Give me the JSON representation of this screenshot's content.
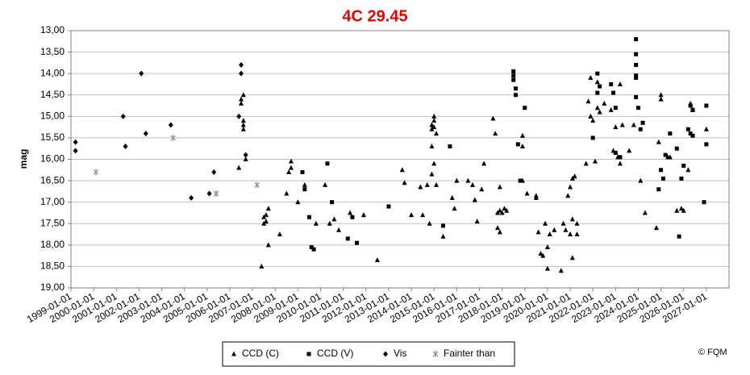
{
  "chart_data": {
    "type": "scatter",
    "title": "4C 29.45",
    "y_label": "mag",
    "credit": "© FQM",
    "xlim": [
      1999,
      2028
    ],
    "ylim": [
      13,
      19
    ],
    "y_reversed": true,
    "grid": true,
    "legend": "bottom",
    "xticks": [
      {
        "value": 1999,
        "label": "1999-01-01"
      },
      {
        "value": 2000,
        "label": "2000-01-01"
      },
      {
        "value": 2001,
        "label": "2001-01-01"
      },
      {
        "value": 2002,
        "label": "2002-01-01"
      },
      {
        "value": 2003,
        "label": "2003-01-01"
      },
      {
        "value": 2004,
        "label": "2004-01-01"
      },
      {
        "value": 2005,
        "label": "2005-01-01"
      },
      {
        "value": 2006,
        "label": "2006-01-01"
      },
      {
        "value": 2007,
        "label": "2007-01-01"
      },
      {
        "value": 2008,
        "label": "2008-01-01"
      },
      {
        "value": 2009,
        "label": "2009-01-01"
      },
      {
        "value": 2010,
        "label": "2010-01-01"
      },
      {
        "value": 2011,
        "label": "2011-01-01"
      },
      {
        "value": 2012,
        "label": "2012-01-01"
      },
      {
        "value": 2013,
        "label": "2013-01-01"
      },
      {
        "value": 2014,
        "label": "2014-01-01"
      },
      {
        "value": 2015,
        "label": "2015-01-01"
      },
      {
        "value": 2016,
        "label": "2016-01-01"
      },
      {
        "value": 2017,
        "label": "2017-01-01"
      },
      {
        "value": 2018,
        "label": "2018-01-01"
      },
      {
        "value": 2019,
        "label": "2019-01-01"
      },
      {
        "value": 2020,
        "label": "2020-01-01"
      },
      {
        "value": 2021,
        "label": "2021-01-01"
      },
      {
        "value": 2022,
        "label": "2022-01-01"
      },
      {
        "value": 2023,
        "label": "2023-01-01"
      },
      {
        "value": 2024,
        "label": "2024-01-01"
      },
      {
        "value": 2025,
        "label": "2025-01-01"
      },
      {
        "value": 2026,
        "label": "2026-01-01"
      },
      {
        "value": 2027,
        "label": "2027-01-01"
      }
    ],
    "yticks": [
      {
        "value": 13,
        "label": "13,00"
      },
      {
        "value": 13.5,
        "label": "13,50"
      },
      {
        "value": 14,
        "label": "14,00"
      },
      {
        "value": 14.5,
        "label": "14,50"
      },
      {
        "value": 15,
        "label": "15,00"
      },
      {
        "value": 15.5,
        "label": "15,50"
      },
      {
        "value": 16,
        "label": "16,00"
      },
      {
        "value": 16.5,
        "label": "16,50"
      },
      {
        "value": 17,
        "label": "17,00"
      },
      {
        "value": 17.5,
        "label": "17,50"
      },
      {
        "value": 18,
        "label": "18,00"
      },
      {
        "value": 18.5,
        "label": "18,50"
      },
      {
        "value": 19,
        "label": "19,00"
      }
    ],
    "series": [
      {
        "name": "CCD (C)",
        "marker": "triangle",
        "color": "#000000",
        "x": [
          2006.4,
          2006.5,
          2006.6,
          2006.5,
          2006.6,
          2006.6,
          2006.6,
          2006.7,
          2007.4,
          2007.5,
          2007.6,
          2007.5,
          2007.6,
          2007.7,
          2007.7,
          2008.2,
          2008.5,
          2008.6,
          2008.7,
          2008.7,
          2009.0,
          2009.3,
          2009.8,
          2010.2,
          2010.4,
          2010.6,
          2010.8,
          2011.3,
          2011.9,
          2012.5,
          2013.6,
          2013.7,
          2014.0,
          2014.4,
          2014.5,
          2014.7,
          2014.9,
          2015.0,
          2015.0,
          2015.0,
          2014.9,
          2015.1,
          2014.9,
          2015.1,
          2014.8,
          2015.0,
          2014.9,
          2015.4,
          2015.8,
          2015.9,
          2016.0,
          2016.5,
          2016.7,
          2016.8,
          2016.9,
          2017.1,
          2017.2,
          2017.6,
          2017.7,
          2017.8,
          2017.9,
          2017.9,
          2017.9,
          2018.0,
          2018.1,
          2018.2,
          2017.8,
          2018.9,
          2018.9,
          2018.9,
          2019.1,
          2019.5,
          2019.5,
          2019.6,
          2019.7,
          2019.8,
          2019.9,
          2020.0,
          2020.0,
          2020.1,
          2020.3,
          2020.6,
          2020.7,
          2020.8,
          2020.9,
          2021.0,
          2021.0,
          2021.1,
          2021.1,
          2021.1,
          2021.2,
          2021.3,
          2021.3,
          2021.7,
          2021.8,
          2021.9,
          2021.9,
          2022.0,
          2022.1,
          2022.2,
          2022.2,
          2022.3,
          2022.5,
          2022.8,
          2022.9,
          2023.0,
          2023.1,
          2023.2,
          2023.2,
          2023.3,
          2023.6,
          2023.8,
          2024.1,
          2024.3,
          2024.9,
          2024.8,
          2025.0,
          2025.0,
          2025.3,
          2025.4,
          2025.7,
          2025.9,
          2026.0,
          2026.2,
          2026.3,
          2026.4,
          2027.0
        ],
        "values": [
          16.2,
          14.7,
          14.5,
          14.6,
          15.3,
          15.1,
          15.2,
          16.0,
          18.5,
          17.35,
          17.3,
          17.5,
          17.45,
          17.15,
          18.0,
          17.75,
          16.8,
          16.3,
          16.05,
          16.2,
          17.0,
          16.6,
          17.5,
          16.6,
          17.5,
          17.4,
          17.65,
          17.25,
          17.3,
          18.35,
          16.25,
          16.55,
          17.3,
          16.65,
          17.3,
          16.6,
          15.7,
          15.0,
          15.1,
          15.25,
          15.3,
          15.4,
          15.2,
          16.6,
          17.5,
          16.1,
          16.35,
          17.8,
          16.9,
          17.15,
          16.5,
          16.5,
          16.6,
          16.95,
          17.45,
          16.7,
          16.1,
          15.05,
          15.4,
          17.6,
          17.7,
          17.2,
          16.65,
          17.25,
          17.15,
          17.2,
          17.25,
          15.45,
          15.7,
          16.5,
          16.8,
          16.85,
          16.9,
          17.7,
          18.2,
          18.25,
          17.5,
          18.05,
          18.55,
          17.75,
          17.65,
          18.6,
          17.5,
          17.65,
          16.85,
          17.75,
          16.65,
          16.45,
          17.4,
          18.3,
          16.4,
          17.75,
          17.5,
          16.1,
          14.65,
          14.1,
          15.0,
          15.1,
          16.05,
          14.8,
          14.2,
          14.9,
          14.7,
          14.85,
          15.8,
          15.25,
          15.95,
          16.1,
          14.25,
          15.2,
          15.8,
          15.2,
          16.5,
          17.25,
          15.6,
          17.6,
          14.5,
          14.6,
          15.95,
          15.95,
          17.2,
          17.15,
          17.2,
          16.25,
          14.7,
          14.85,
          15.3
        ]
      },
      {
        "name": "CCD (V)",
        "marker": "square",
        "color": "#000000",
        "x": [
          2009.2,
          2009.3,
          2009.5,
          2009.6,
          2009.7,
          2010.3,
          2010.5,
          2011.2,
          2011.6,
          2011.4,
          2013.0,
          2015.4,
          2015.7,
          2018.5,
          2018.5,
          2018.5,
          2018.6,
          2018.6,
          2018.7,
          2018.8,
          2019.0,
          2022.0,
          2022.2,
          2022.2,
          2022.3,
          2022.8,
          2022.9,
          2023.0,
          2023.0,
          2023.2,
          2023.9,
          2023.9,
          2023.9,
          2023.9,
          2023.9,
          2024.0,
          2024.1,
          2024.2,
          2023.9,
          2024.9,
          2025.0,
          2025.1,
          2025.2,
          2025.4,
          2025.8,
          2025.7,
          2025.9,
          2026.0,
          2026.2,
          2026.3,
          2026.3,
          2026.4,
          2026.4,
          2026.9,
          2027.0,
          2027.0
        ],
        "values": [
          16.3,
          16.7,
          17.35,
          18.05,
          18.1,
          16.1,
          17.0,
          17.85,
          17.95,
          17.35,
          17.1,
          17.55,
          15.7,
          14.15,
          13.95,
          14.05,
          14.35,
          14.5,
          15.65,
          16.5,
          14.8,
          15.5,
          14.0,
          14.45,
          14.3,
          14.25,
          14.45,
          14.8,
          15.85,
          15.95,
          13.2,
          13.55,
          13.8,
          14.1,
          14.05,
          14.8,
          15.3,
          15.15,
          14.55,
          16.7,
          16.25,
          16.45,
          15.9,
          15.4,
          17.8,
          15.75,
          16.45,
          16.15,
          15.3,
          15.4,
          14.75,
          14.85,
          15.45,
          17.0,
          14.75,
          15.65
        ]
      },
      {
        "name": "Vis",
        "marker": "diamond",
        "color": "#000000",
        "x": [
          1999.2,
          1999.2,
          2001.3,
          2001.4,
          2002.1,
          2002.3,
          2003.4,
          2004.3,
          2005.1,
          2005.3,
          2006.4,
          2006.5,
          2006.5,
          2006.7
        ],
        "values": [
          15.6,
          15.8,
          15.0,
          15.7,
          14.0,
          15.4,
          15.2,
          16.9,
          16.8,
          16.3,
          15.0,
          13.8,
          14.0,
          15.9
        ]
      },
      {
        "name": "Fainter than",
        "marker": "asterisk",
        "color": "#808080",
        "x": [
          2000.1,
          2003.5,
          2005.4,
          2007.2
        ],
        "values": [
          16.3,
          15.5,
          16.8,
          16.6
        ]
      }
    ]
  }
}
